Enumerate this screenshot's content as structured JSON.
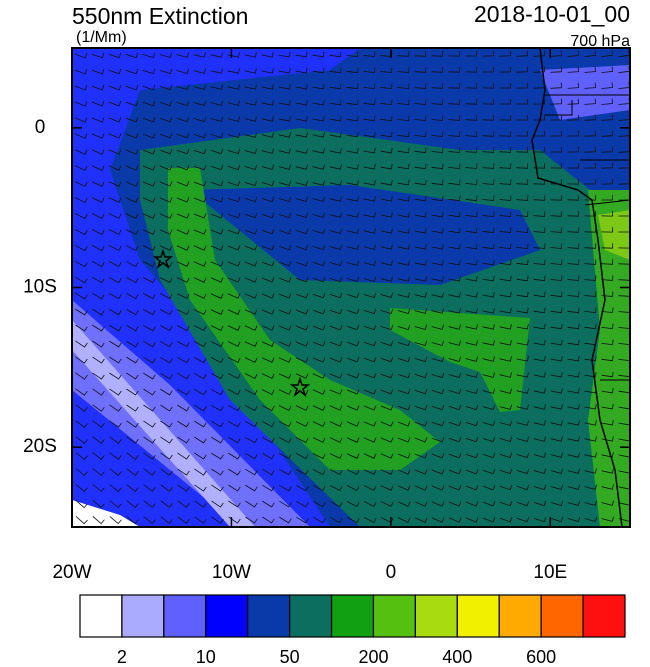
{
  "header": {
    "title": "550nm Extinction",
    "units": "(1/Mm)",
    "time": "2018-10-01_00",
    "level": "700 hPa"
  },
  "map": {
    "xlim": [
      -20,
      15
    ],
    "ylim": [
      -25,
      5
    ],
    "xticks": [
      {
        "value": -20,
        "label": "20W"
      },
      {
        "value": -10,
        "label": "10W"
      },
      0,
      {
        "value": 10,
        "label": "10E"
      }
    ],
    "yticks": [
      0,
      {
        "value": -10,
        "label": "10S"
      },
      {
        "value": -20,
        "label": "20S"
      }
    ]
  },
  "colorbar": {
    "colors": [
      "#ffffff",
      "#aaaaff",
      "#6060ff",
      "#0000ff",
      "#0a3aaa",
      "#0b6e5e",
      "#11a011",
      "#55c010",
      "#a8dc10",
      "#f0f000",
      "#ffaa00",
      "#ff6600",
      "#ff1010"
    ],
    "labels": [
      "2",
      "10",
      "50",
      "200",
      "400",
      "600"
    ]
  }
}
